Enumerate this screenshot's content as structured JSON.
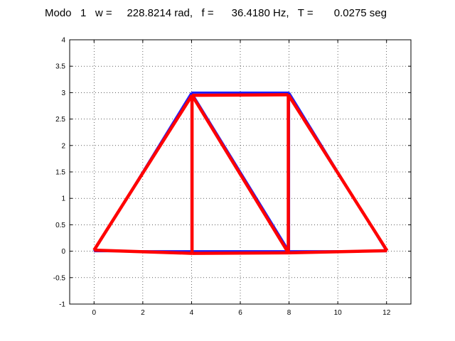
{
  "chart_data": {
    "type": "line",
    "title": "Modo   1   w =     228.8214 rad,   f =      36.4180 Hz,   T =       0.0275 seg",
    "xlabel": "",
    "ylabel": "",
    "xlim": [
      -1,
      13
    ],
    "ylim": [
      -1,
      4
    ],
    "xticks": [
      0,
      2,
      4,
      6,
      8,
      10,
      12
    ],
    "yticks": [
      -1,
      -0.5,
      0,
      0.5,
      1,
      1.5,
      2,
      2.5,
      3,
      3.5,
      4
    ],
    "xtick_labels": [
      "0",
      "2",
      "4",
      "6",
      "8",
      "10",
      "12"
    ],
    "ytick_labels": [
      "-1",
      "-0.5",
      "0",
      "0.5",
      "1",
      "1.5",
      "2",
      "2.5",
      "3",
      "3.5",
      "4"
    ],
    "grid": true,
    "grid_style": "dotted",
    "series": [
      {
        "color": "#1a1aff",
        "segments": [
          [
            [
              0,
              0
            ],
            [
              4,
              0
            ]
          ],
          [
            [
              4,
              0
            ],
            [
              8,
              0
            ]
          ],
          [
            [
              8,
              0
            ],
            [
              12,
              0
            ]
          ],
          [
            [
              4,
              3
            ],
            [
              8,
              3
            ]
          ],
          [
            [
              0,
              0
            ],
            [
              4,
              3
            ]
          ],
          [
            [
              4,
              0
            ],
            [
              4,
              3
            ]
          ],
          [
            [
              4,
              3
            ],
            [
              8,
              0
            ]
          ],
          [
            [
              8,
              0
            ],
            [
              8,
              3
            ]
          ],
          [
            [
              8,
              3
            ],
            [
              12,
              0
            ]
          ]
        ]
      },
      {
        "color": "#ff0000",
        "segments": [
          [
            [
              0,
              0.02
            ],
            [
              4.02,
              -0.04
            ]
          ],
          [
            [
              4.02,
              -0.04
            ],
            [
              7.97,
              -0.03
            ]
          ],
          [
            [
              7.97,
              -0.03
            ],
            [
              12.02,
              0.01
            ]
          ],
          [
            [
              4.02,
              2.95
            ],
            [
              7.97,
              2.96
            ]
          ],
          [
            [
              0,
              0.02
            ],
            [
              4.02,
              2.95
            ]
          ],
          [
            [
              4.02,
              -0.04
            ],
            [
              4.02,
              2.95
            ]
          ],
          [
            [
              4.02,
              2.95
            ],
            [
              7.97,
              -0.03
            ]
          ],
          [
            [
              7.97,
              -0.03
            ],
            [
              7.97,
              2.96
            ]
          ],
          [
            [
              7.97,
              2.96
            ],
            [
              12.02,
              0.01
            ]
          ]
        ]
      }
    ]
  }
}
